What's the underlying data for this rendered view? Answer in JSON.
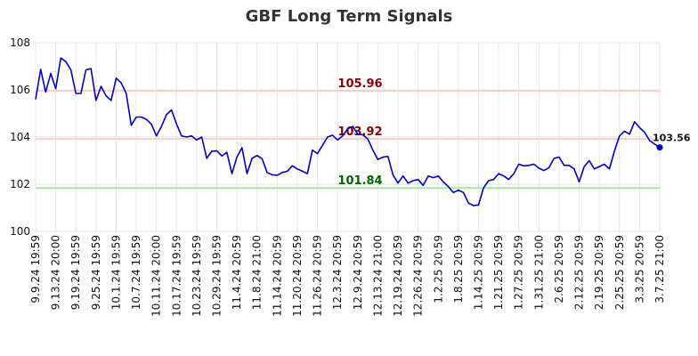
{
  "chart_data": {
    "type": "line",
    "title": "GBF Long Term Signals",
    "xlabel": "",
    "ylabel": "",
    "ylim": [
      100,
      108
    ],
    "yticks": [
      100,
      102,
      104,
      106,
      108
    ],
    "grid": true,
    "line_color": "#0000cc",
    "x_tick_labels": [
      "9.9.24 19:59",
      "9.13.24 20:00",
      "9.19.24 19:59",
      "9.25.24 19:59",
      "10.1.24 19:59",
      "10.7.24 19:59",
      "10.11.24 20:00",
      "10.17.24 19:59",
      "10.23.24 19:59",
      "10.29.24 19:59",
      "11.4.24 20:59",
      "11.8.24 21:00",
      "11.14.24 20:59",
      "11.20.24 20:59",
      "11.26.24 20:59",
      "12.3.24 20:59",
      "12.9.24 20:59",
      "12.13.24 21:00",
      "12.19.24 20:59",
      "12.26.24 20:59",
      "1.2.25 20:59",
      "1.8.25 20:59",
      "1.14.25 20:59",
      "1.21.25 20:59",
      "1.27.25 20:59",
      "1.31.25 21:00",
      "2.6.25 20:59",
      "2.12.25 20:59",
      "2.19.25 20:59",
      "2.25.25 20:59",
      "3.3.25 20:59",
      "3.7.25 21:00"
    ],
    "values": [
      105.6,
      106.87,
      105.9,
      106.7,
      106.05,
      107.35,
      107.2,
      106.85,
      105.85,
      105.85,
      106.85,
      106.9,
      105.55,
      106.15,
      105.75,
      105.55,
      106.5,
      106.3,
      105.85,
      104.5,
      104.85,
      104.85,
      104.75,
      104.55,
      104.05,
      104.45,
      104.95,
      105.15,
      104.55,
      104.05,
      104.0,
      104.05,
      103.88,
      104.0,
      103.1,
      103.4,
      103.42,
      103.2,
      103.35,
      102.45,
      103.15,
      103.55,
      102.45,
      103.1,
      103.22,
      103.08,
      102.5,
      102.4,
      102.38,
      102.5,
      102.55,
      102.78,
      102.65,
      102.55,
      102.45,
      103.45,
      103.3,
      103.65,
      104.0,
      104.08,
      103.88,
      104.05,
      104.35,
      104.45,
      104.12,
      104.1,
      103.92,
      103.45,
      103.05,
      103.15,
      103.18,
      102.4,
      102.05,
      102.35,
      102.05,
      102.15,
      102.2,
      101.95,
      102.35,
      102.28,
      102.35,
      102.1,
      101.9,
      101.65,
      101.75,
      101.65,
      101.2,
      101.1,
      101.12,
      101.85,
      102.15,
      102.2,
      102.45,
      102.35,
      102.2,
      102.45,
      102.85,
      102.78,
      102.8,
      102.85,
      102.68,
      102.58,
      102.7,
      103.1,
      103.15,
      102.8,
      102.8,
      102.65,
      102.1,
      102.75,
      103.0,
      102.65,
      102.75,
      102.85,
      102.65,
      103.4,
      104.05,
      104.25,
      104.12,
      104.65,
      104.4,
      104.2,
      103.85,
      103.7,
      103.56
    ],
    "reference_lines": [
      {
        "value": 105.96,
        "label": "105.96",
        "line_color": "#ffcccc",
        "label_color": "#8b0000"
      },
      {
        "value": 103.92,
        "label": "103.92",
        "line_color": "#ffcccc",
        "label_color": "#8b0000"
      },
      {
        "value": 101.84,
        "label": "101.84",
        "line_color": "#99ee99",
        "label_color": "#006400"
      }
    ],
    "last_value_label": "103.56"
  }
}
